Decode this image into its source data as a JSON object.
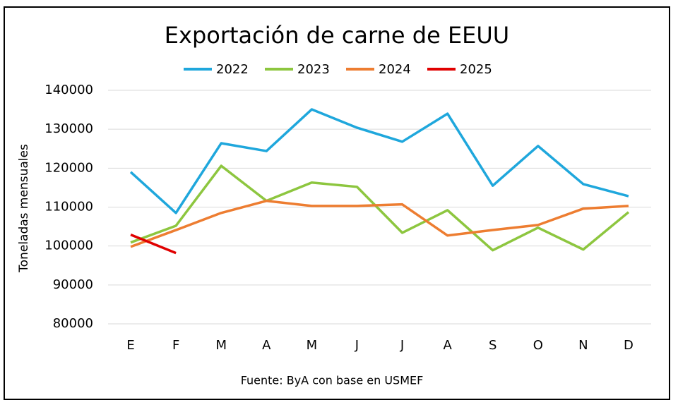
{
  "chart_data": {
    "type": "line",
    "title": "Exportación de carne de EEUU",
    "y_label": "Toneladas mensuales",
    "source": "Fuente: ByA con base en USMEF",
    "categories": [
      "E",
      "F",
      "M",
      "A",
      "M",
      "J",
      "J",
      "A",
      "S",
      "O",
      "N",
      "D"
    ],
    "series": [
      {
        "name": "2022",
        "color": "#1fa7dc",
        "values": [
          119000,
          108500,
          126400,
          124400,
          135100,
          130400,
          126800,
          134000,
          115500,
          125700,
          115900,
          112800
        ]
      },
      {
        "name": "2023",
        "color": "#8dc63f",
        "values": [
          100900,
          105200,
          120600,
          111600,
          116300,
          115200,
          103400,
          109200,
          98900,
          104700,
          99100,
          108700
        ]
      },
      {
        "name": "2024",
        "color": "#ed7d31",
        "values": [
          99800,
          104100,
          108500,
          111600,
          110300,
          110300,
          110700,
          102700,
          104100,
          105400,
          109600,
          110300
        ]
      },
      {
        "name": "2025",
        "color": "#e00000",
        "values": [
          102900,
          98200,
          null,
          null,
          null,
          null,
          null,
          null,
          null,
          null,
          null,
          null
        ]
      }
    ],
    "ylim": [
      80000,
      140000
    ],
    "yticks": [
      80000,
      90000,
      100000,
      110000,
      120000,
      130000,
      140000
    ],
    "grid": true
  }
}
